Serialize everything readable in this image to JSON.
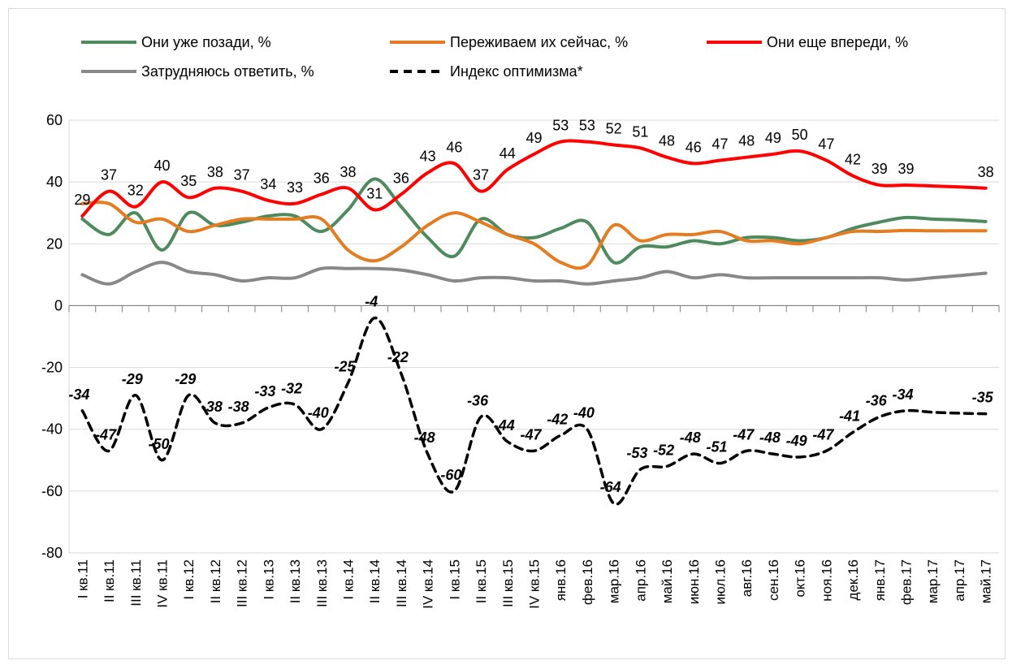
{
  "chart_data": {
    "type": "line",
    "categories": [
      "I кв.11",
      "II кв.11",
      "III кв.11",
      "IV кв.11",
      "I кв.12",
      "II кв.12",
      "III кв.12",
      "I кв.13",
      "II кв.13",
      "III кв.13",
      "I кв.14",
      "II кв.14",
      "III кв.14",
      "IV кв.14",
      "I кв.15",
      "II кв.15",
      "III кв.15",
      "IV кв.15",
      "янв.16",
      "фев.16",
      "мар.16",
      "апр.16",
      "май.16",
      "июн.16",
      "июл.16",
      "авг.16",
      "сен.16",
      "окт.16",
      "ноя.16",
      "дек.16",
      "янв.17",
      "фев.17",
      "мар.17",
      "апр.17",
      "май.17"
    ],
    "series": [
      {
        "name": "Они уже позади, %",
        "color": "#4e8a5e",
        "style": "solid",
        "values": [
          28,
          23,
          30,
          18,
          30,
          26,
          27,
          29,
          29,
          24,
          31,
          41,
          32,
          22,
          16,
          28,
          23,
          22,
          25,
          27,
          14,
          19,
          19,
          21,
          20,
          22,
          22,
          21,
          22,
          25,
          27,
          28.5,
          28,
          27.7,
          27.2
        ]
      },
      {
        "name": "Переживаем их сейчас, %",
        "color": "#e47c22",
        "style": "solid",
        "values": [
          33,
          33,
          27,
          28,
          24,
          26,
          28,
          28,
          28,
          28,
          18,
          14.5,
          19,
          26,
          30,
          27,
          23,
          20,
          14,
          13,
          26,
          21,
          23,
          23,
          24,
          21,
          21,
          20,
          22,
          24,
          24,
          24.3,
          24.2,
          24.2,
          24.2
        ]
      },
      {
        "name": "Они еще впереди, %",
        "color": "#ff0000",
        "style": "solid",
        "label_color": "#ff0000",
        "values": [
          29,
          37,
          32,
          40,
          35,
          38,
          37,
          34,
          33,
          36,
          38,
          31,
          36,
          43,
          46,
          37,
          44,
          49,
          53,
          53,
          52,
          51,
          48,
          46,
          47,
          48,
          49,
          50,
          47,
          42,
          39,
          39,
          38.7,
          38.4,
          38
        ],
        "value_labels": [
          "29",
          "37",
          "32",
          "40",
          "35",
          "38",
          "37",
          "34",
          "33",
          "36",
          "38",
          "31",
          "36",
          "43",
          "46",
          "37",
          "44",
          "49",
          "53",
          "53",
          "52",
          "51",
          "48",
          "46",
          "47",
          "48",
          "49",
          "50",
          "47",
          "42",
          "39",
          "39",
          null,
          null,
          "38"
        ]
      },
      {
        "name": "Затрудняюсь ответить, %",
        "color": "#888888",
        "style": "solid",
        "values": [
          10,
          7,
          11,
          14,
          11,
          10,
          8,
          9,
          9,
          12,
          12,
          12,
          11.5,
          10,
          8,
          9,
          9,
          8,
          8,
          7,
          8,
          9,
          11,
          9,
          10,
          9,
          9,
          9,
          9,
          9,
          9,
          8.3,
          9,
          9.7,
          10.5
        ]
      },
      {
        "name": "Индекс оптимизма*",
        "color": "#000000",
        "style": "dashed",
        "label_color": "#000000",
        "values": [
          -34,
          -47,
          -29,
          -50,
          -29,
          -38,
          -38,
          -33,
          -32,
          -40,
          -25,
          -4,
          -22,
          -48,
          -60,
          -36,
          -44,
          -47,
          -42,
          -40,
          -64,
          -53,
          -52,
          -48,
          -51,
          -47,
          -48,
          -49,
          -47,
          -41,
          -36,
          -34,
          -34.5,
          -34.8,
          -35
        ],
        "value_labels": [
          "-34",
          "-47",
          "-29",
          "-50",
          "-29",
          "-38",
          "-38",
          "-33",
          "-32",
          "-40",
          "-25",
          "-4",
          "-22",
          "-48",
          "-60",
          "-36",
          "-44",
          "-47",
          "-42",
          "-40",
          "-64",
          "-53",
          "-52",
          "-48",
          "-51",
          "-47",
          "-48",
          "-49",
          "-47",
          "-41",
          "-36",
          "-34",
          null,
          null,
          "-35"
        ]
      }
    ],
    "ylim": [
      -80,
      60
    ],
    "yticks": [
      -80,
      -60,
      -40,
      -20,
      0,
      20,
      40,
      60
    ],
    "grid": true,
    "smooth": true,
    "legend": "top"
  }
}
